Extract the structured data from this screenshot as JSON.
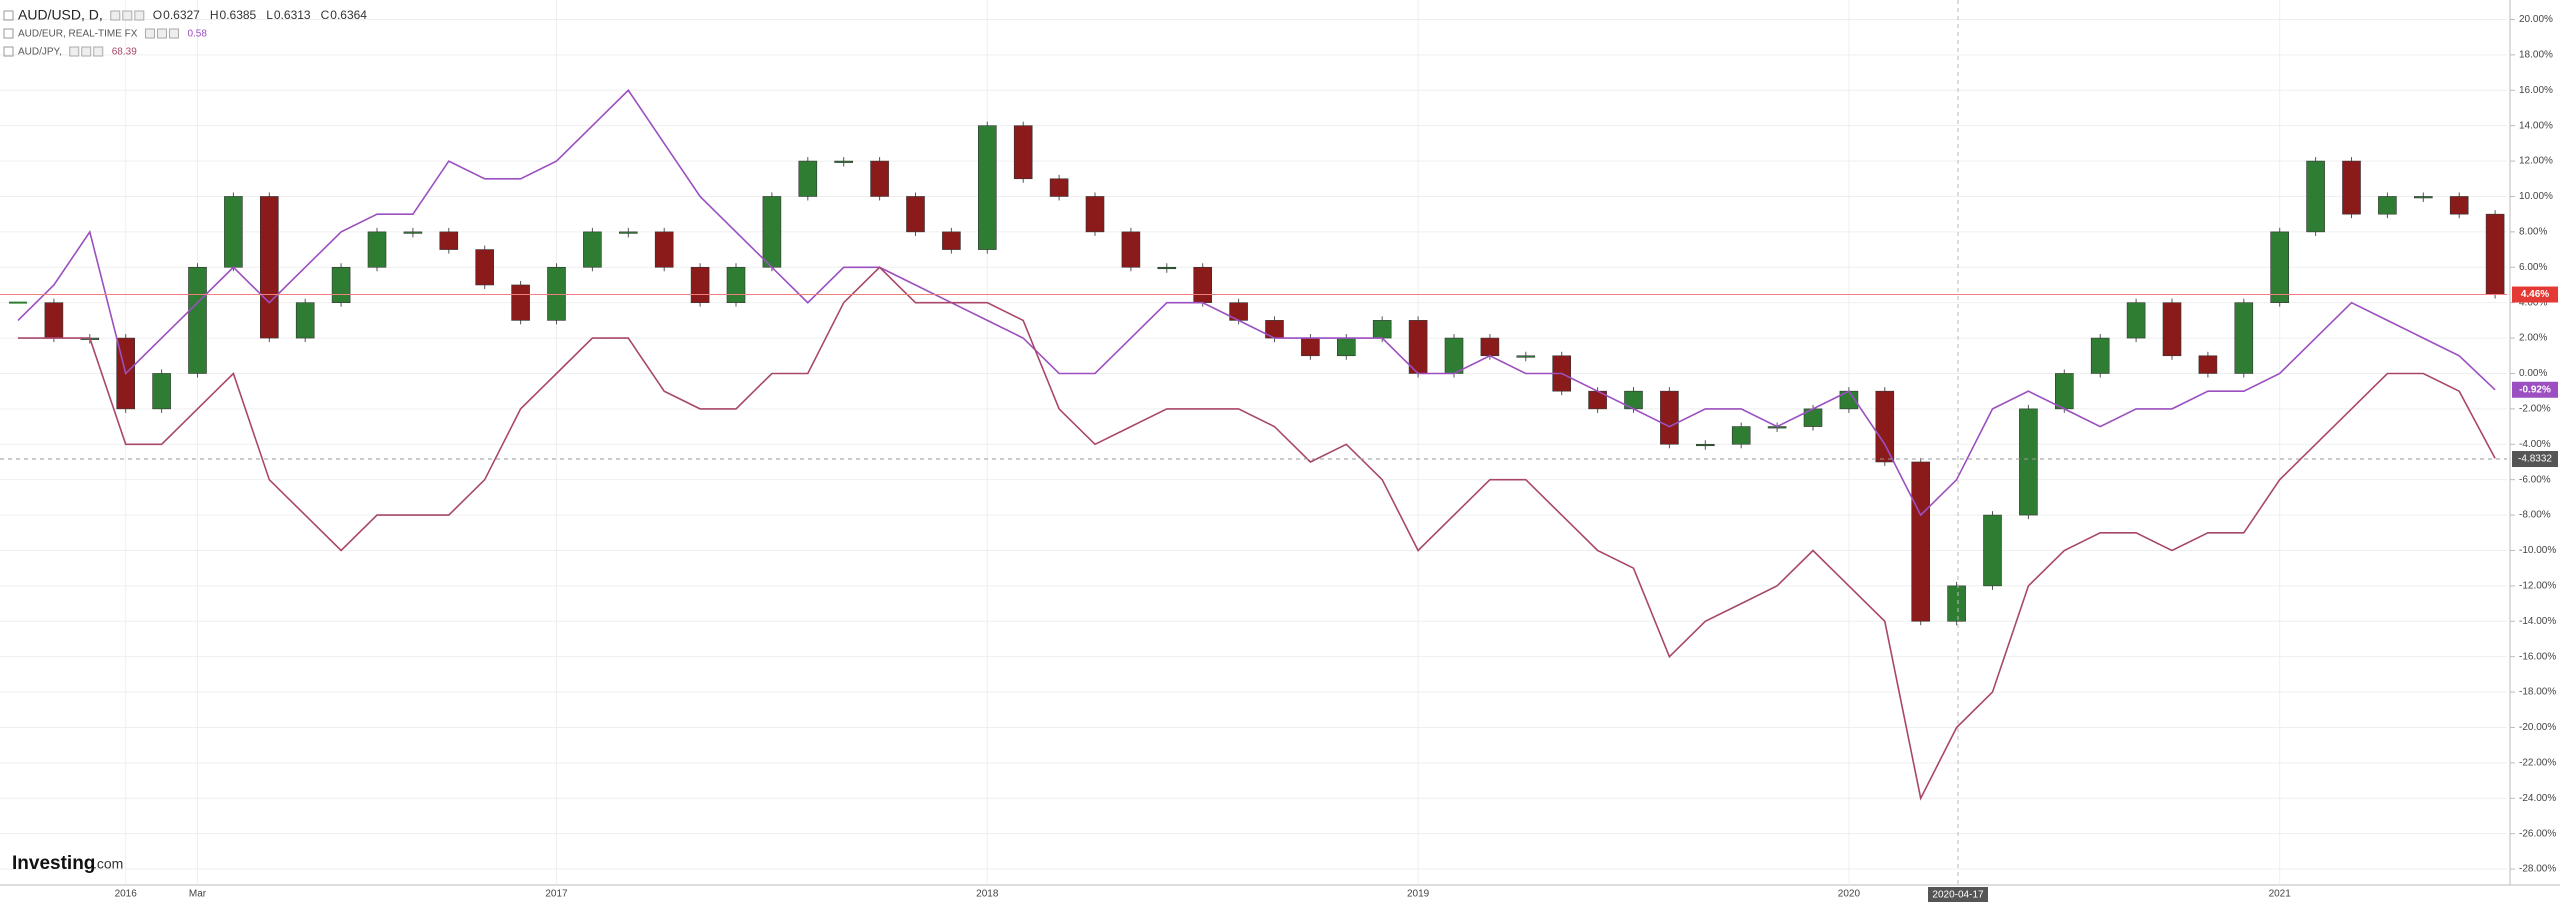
{
  "chart_data": {
    "type": "line",
    "header": {
      "ohlc": [
        {
          "label": "O",
          "value": 0.6327
        },
        {
          "label": "H",
          "value": 0.6385
        },
        {
          "label": "L",
          "value": 0.6313
        },
        {
          "label": "C",
          "value": 0.6364
        }
      ]
    },
    "categories": [
      null,
      null,
      null,
      "2016",
      null,
      "Mar",
      null,
      null,
      null,
      null,
      null,
      null,
      null,
      null,
      null,
      "2017",
      null,
      null,
      null,
      null,
      null,
      null,
      null,
      null,
      null,
      null,
      null,
      "2018",
      null,
      null,
      null,
      null,
      null,
      null,
      null,
      null,
      null,
      null,
      null,
      "2019",
      null,
      null,
      null,
      null,
      null,
      null,
      null,
      null,
      null,
      null,
      null,
      "2020",
      null,
      null,
      null,
      null,
      null,
      null,
      null,
      null,
      null,
      null,
      null,
      "2021",
      null,
      null,
      null,
      null,
      null,
      null
    ],
    "series": [
      {
        "name": "AUD/USD, D,",
        "style": "candlestick",
        "up_color": "#2e7d32",
        "down_color": "#8b1a1a",
        "last_label": "4.46%",
        "last_color": "#e53935",
        "values": [
          4,
          2,
          2,
          -2,
          0,
          6,
          10,
          2,
          4,
          6,
          8,
          8,
          7,
          5,
          3,
          6,
          8,
          8,
          6,
          4,
          6,
          10,
          12,
          12,
          10,
          8,
          7,
          14,
          11,
          10,
          8,
          6,
          6,
          4,
          3,
          2,
          1,
          2,
          3,
          0,
          2,
          1,
          1,
          -1,
          -2,
          -1,
          -4,
          -4,
          -3,
          -3,
          -2,
          -1,
          -5,
          -14,
          -12,
          -8,
          -2,
          0,
          2,
          4,
          1,
          0,
          4,
          8,
          12,
          9,
          10,
          10,
          9,
          4.46
        ]
      },
      {
        "name": "AUD/EUR, REAL-TIME FX",
        "color": "#9b4fc0",
        "legend_value": 0.58,
        "last_label": "-0.92%",
        "values": [
          3,
          5,
          8,
          0,
          2,
          4,
          6,
          4,
          6,
          8,
          9,
          9,
          12,
          11,
          11,
          12,
          14,
          16,
          13,
          10,
          8,
          6,
          4,
          6,
          6,
          5,
          4,
          3,
          2,
          0,
          0,
          2,
          4,
          4,
          3,
          2,
          2,
          2,
          2,
          0,
          0,
          1,
          0,
          0,
          -1,
          -2,
          -3,
          -2,
          -2,
          -3,
          -2,
          -1,
          -4,
          -8,
          -6,
          -2,
          -1,
          -2,
          -3,
          -2,
          -2,
          -1,
          -1,
          0,
          2,
          4,
          3,
          2,
          1,
          -0.92
        ]
      },
      {
        "name": "AUD/JPY,",
        "color": "#a8476b",
        "legend_value": 68.39,
        "values": [
          2,
          2,
          2,
          -4,
          -4,
          -2,
          0,
          -6,
          -8,
          -10,
          -8,
          -8,
          -8,
          -6,
          -2,
          0,
          2,
          2,
          -1,
          -2,
          -2,
          0,
          0,
          4,
          6,
          4,
          4,
          4,
          3,
          -2,
          -4,
          -3,
          -2,
          -2,
          -2,
          -3,
          -5,
          -4,
          -6,
          -10,
          -8,
          -6,
          -6,
          -8,
          -10,
          -11,
          -16,
          -14,
          -13,
          -12,
          -10,
          -12,
          -14,
          -24,
          -20,
          -18,
          -12,
          -10,
          -9,
          -9,
          -10,
          -9,
          -9,
          -6,
          -4,
          -2,
          0,
          0,
          -1,
          -4.8
        ]
      }
    ],
    "ylim": [
      -28.9,
      21.1
    ],
    "yticks": [
      {
        "value": 20,
        "label": "20.00%"
      },
      {
        "value": 18,
        "label": "18.00%"
      },
      {
        "value": 16,
        "label": "16.00%"
      },
      {
        "value": 14,
        "label": "14.00%"
      },
      {
        "value": 12,
        "label": "12.00%"
      },
      {
        "value": 10,
        "label": "10.00%"
      },
      {
        "value": 8,
        "label": "8.00%"
      },
      {
        "value": 6,
        "label": "6.00%"
      },
      {
        "value": 4,
        "label": "4.00%"
      },
      {
        "value": 2,
        "label": "2.00%"
      },
      {
        "value": 0,
        "label": "0.00%"
      },
      {
        "value": -2,
        "label": "-2.00%"
      },
      {
        "value": -4,
        "label": "-4.00%"
      },
      {
        "value": -6,
        "label": "-6.00%"
      },
      {
        "value": -8,
        "label": "-8.00%"
      },
      {
        "value": -10,
        "label": "-10.00%"
      },
      {
        "value": -12,
        "label": "-12.00%"
      },
      {
        "value": -14,
        "label": "-14.00%"
      },
      {
        "value": -16,
        "label": "-16.00%"
      },
      {
        "value": -18,
        "label": "-18.00%"
      },
      {
        "value": -20,
        "label": "-20.00%"
      },
      {
        "value": -22,
        "label": "-22.00%"
      },
      {
        "value": -24,
        "label": "-24.00%"
      },
      {
        "value": -26,
        "label": "-26.00%"
      },
      {
        "value": -28,
        "label": "-28.00%"
      }
    ],
    "grid": true,
    "crosshair": {
      "x_label": "2020-04-17",
      "y": -4.8332
    },
    "logo": {
      "brand": "Investing",
      "suffix": ".com"
    }
  }
}
